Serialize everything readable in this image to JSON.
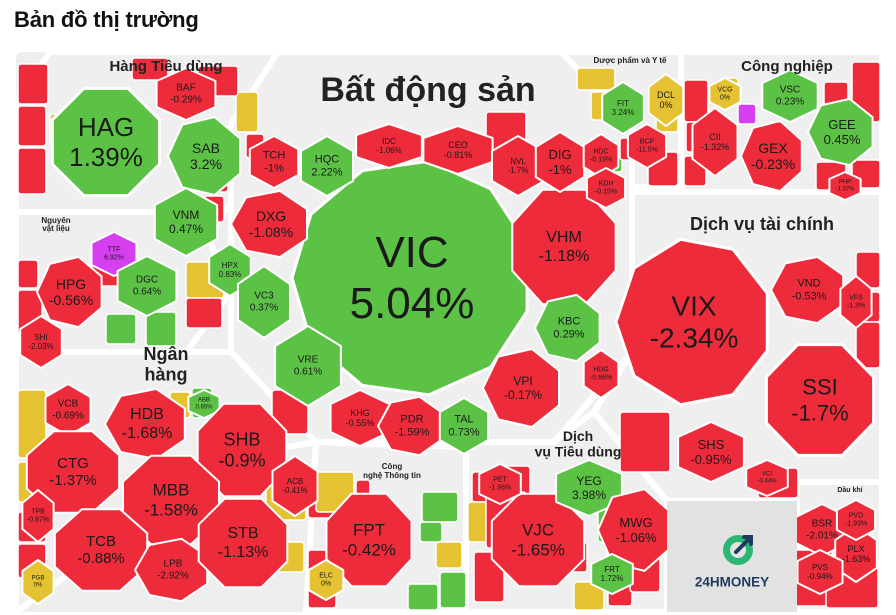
{
  "title": "Bản đồ thị trường",
  "brand": "24HMONEY",
  "colors": {
    "up": "#5cc245",
    "down": "#ee2b3b",
    "ref": "#e5c232",
    "ceiling": "#d53ff0",
    "floor": "#2ac3d3",
    "sector_bg": "#efefef",
    "text_dark": "#1a1a1a"
  },
  "chart_data": {
    "type": "heatmap",
    "title": "Bản đồ thị trường",
    "sectors": [
      {
        "name": "Bất động sản",
        "lines": [
          "Bất động sản"
        ]
      },
      {
        "name": "Hàng Tiêu dùng",
        "lines": [
          "Hàng Tiêu dùng"
        ]
      },
      {
        "name": "Dược phẩm và Y tế",
        "lines": [
          "Dược phẩm và Y tế"
        ]
      },
      {
        "name": "Công nghiệp",
        "lines": [
          "Công nghiệp"
        ]
      },
      {
        "name": "Dịch vụ tài chính",
        "lines": [
          "Dịch vụ tài chính"
        ]
      },
      {
        "name": "Nguyên vật liệu",
        "lines": [
          "Nguyên",
          "vật liệu"
        ]
      },
      {
        "name": "Ngân hàng",
        "lines": [
          "Ngân",
          "hàng"
        ]
      },
      {
        "name": "Công nghệ Thông tin",
        "lines": [
          "Công",
          "nghệ Thông tin"
        ]
      },
      {
        "name": "Dịch vụ Tiêu dùng",
        "lines": [
          "Dịch",
          "vụ Tiêu dùng"
        ]
      },
      {
        "name": "Dầu khí",
        "lines": [
          "Dầu khí"
        ]
      }
    ],
    "tiles": [
      {
        "sector": "Bất động sản",
        "ticker": "VIC",
        "change": "5.04%",
        "value": 5.04,
        "state": "up"
      },
      {
        "sector": "Bất động sản",
        "ticker": "VHM",
        "change": "-1.18%",
        "value": -1.18,
        "state": "down"
      },
      {
        "sector": "Bất động sản",
        "ticker": "TCH",
        "change": "-1%",
        "value": -1,
        "state": "down"
      },
      {
        "sector": "Bất động sản",
        "ticker": "HQC",
        "change": "2.22%",
        "value": 2.22,
        "state": "up"
      },
      {
        "sector": "Bất động sản",
        "ticker": "IDC",
        "change": "-1.06%",
        "value": -1.06,
        "state": "down"
      },
      {
        "sector": "Bất động sản",
        "ticker": "CEO",
        "change": "-0.81%",
        "value": -0.81,
        "state": "down"
      },
      {
        "sector": "Bất động sản",
        "ticker": "NVL",
        "change": "-1.7%",
        "value": -1.7,
        "state": "down"
      },
      {
        "sector": "Bất động sản",
        "ticker": "DIG",
        "change": "-1%",
        "value": -1,
        "state": "down"
      },
      {
        "sector": "Bất động sản",
        "ticker": "HDC",
        "change": "-0.19%",
        "value": -0.19,
        "state": "down"
      },
      {
        "sector": "Bất động sản",
        "ticker": "KDH",
        "change": "-0.15%",
        "value": -0.15,
        "state": "down"
      },
      {
        "sector": "Bất động sản",
        "ticker": "DXG",
        "change": "-1.08%",
        "value": -1.08,
        "state": "down"
      },
      {
        "sector": "Bất động sản",
        "ticker": "HPX",
        "change": "0.83%",
        "value": 0.83,
        "state": "up"
      },
      {
        "sector": "Bất động sản",
        "ticker": "VC3",
        "change": "0.37%",
        "value": 0.37,
        "state": "up"
      },
      {
        "sector": "Bất động sản",
        "ticker": "VRE",
        "change": "0.61%",
        "value": 0.61,
        "state": "up"
      },
      {
        "sector": "Bất động sản",
        "ticker": "KBC",
        "change": "0.29%",
        "value": 0.29,
        "state": "up"
      },
      {
        "sector": "Bất động sản",
        "ticker": "HDG",
        "change": "-0.66%",
        "value": -0.66,
        "state": "down"
      },
      {
        "sector": "Bất động sản",
        "ticker": "VPI",
        "change": "-0.17%",
        "value": -0.17,
        "state": "down"
      },
      {
        "sector": "Bất động sản",
        "ticker": "KHG",
        "change": "-0.55%",
        "value": -0.55,
        "state": "down"
      },
      {
        "sector": "Bất động sản",
        "ticker": "PDR",
        "change": "-1.59%",
        "value": -1.59,
        "state": "down"
      },
      {
        "sector": "Bất động sản",
        "ticker": "TAL",
        "change": "0.73%",
        "value": 0.73,
        "state": "up"
      },
      {
        "sector": "Hàng Tiêu dùng",
        "ticker": "HAG",
        "change": "1.39%",
        "value": 1.39,
        "state": "up"
      },
      {
        "sector": "Hàng Tiêu dùng",
        "ticker": "BAF",
        "change": "-0.29%",
        "value": -0.29,
        "state": "down"
      },
      {
        "sector": "Hàng Tiêu dùng",
        "ticker": "SAB",
        "change": "3.2%",
        "value": 3.2,
        "state": "up"
      },
      {
        "sector": "Hàng Tiêu dùng",
        "ticker": "VNM",
        "change": "0.47%",
        "value": 0.47,
        "state": "up"
      },
      {
        "sector": "Dược phẩm và Y tế",
        "ticker": "FIT",
        "change": "3.24%",
        "value": 3.24,
        "state": "up"
      },
      {
        "sector": "Dược phẩm và Y tế",
        "ticker": "DCL",
        "change": "0%",
        "value": 0,
        "state": "ref"
      },
      {
        "sector": "Dược phẩm và Y tế",
        "ticker": "BCP",
        "change": "-11.5%",
        "value": -11.5,
        "state": "down"
      },
      {
        "sector": "Công nghiệp",
        "ticker": "VCG",
        "change": "0%",
        "value": 0,
        "state": "ref"
      },
      {
        "sector": "Công nghiệp",
        "ticker": "VSC",
        "change": "0.23%",
        "value": 0.23,
        "state": "up"
      },
      {
        "sector": "Công nghiệp",
        "ticker": "CII",
        "change": "-1.32%",
        "value": -1.32,
        "state": "down"
      },
      {
        "sector": "Công nghiệp",
        "ticker": "GEX",
        "change": "-0.23%",
        "value": -0.23,
        "state": "down"
      },
      {
        "sector": "Công nghiệp",
        "ticker": "GEE",
        "change": "0.45%",
        "value": 0.45,
        "state": "up"
      },
      {
        "sector": "Công nghiệp",
        "ticker": "PHP",
        "change": "-1.37%",
        "value": -1.37,
        "state": "down"
      },
      {
        "sector": "Dịch vụ tài chính",
        "ticker": "VIX",
        "change": "-2.34%",
        "value": -2.34,
        "state": "down"
      },
      {
        "sector": "Dịch vụ tài chính",
        "ticker": "VND",
        "change": "-0.53%",
        "value": -0.53,
        "state": "down"
      },
      {
        "sector": "Dịch vụ tài chính",
        "ticker": "VFS",
        "change": "-1.3%",
        "value": -1.3,
        "state": "down"
      },
      {
        "sector": "Dịch vụ tài chính",
        "ticker": "SSI",
        "change": "-1.7%",
        "value": -1.7,
        "state": "down"
      },
      {
        "sector": "Dịch vụ tài chính",
        "ticker": "SHS",
        "change": "-0.95%",
        "value": -0.95,
        "state": "down"
      },
      {
        "sector": "Dịch vụ tài chính",
        "ticker": "VCI",
        "change": "-0.44%",
        "value": -0.44,
        "state": "down"
      },
      {
        "sector": "Nguyên vật liệu",
        "ticker": "HPG",
        "change": "-0.56%",
        "value": -0.56,
        "state": "down"
      },
      {
        "sector": "Nguyên vật liệu",
        "ticker": "TTF",
        "change": "6.92%",
        "value": 6.92,
        "state": "ceiling"
      },
      {
        "sector": "Nguyên vật liệu",
        "ticker": "DGC",
        "change": "0.64%",
        "value": 0.64,
        "state": "up"
      },
      {
        "sector": "Nguyên vật liệu",
        "ticker": "SHI",
        "change": "-2.03%",
        "value": -2.03,
        "state": "down"
      },
      {
        "sector": "Ngân hàng",
        "ticker": "VCB",
        "change": "-0.69%",
        "value": -0.69,
        "state": "down"
      },
      {
        "sector": "Ngân hàng",
        "ticker": "HDB",
        "change": "-1.68%",
        "value": -1.68,
        "state": "down"
      },
      {
        "sector": "Ngân hàng",
        "ticker": "ABB",
        "change": "0.85%",
        "value": 0.85,
        "state": "up"
      },
      {
        "sector": "Ngân hàng",
        "ticker": "CTG",
        "change": "-1.37%",
        "value": -1.37,
        "state": "down"
      },
      {
        "sector": "Ngân hàng",
        "ticker": "SHB",
        "change": "-0.9%",
        "value": -0.9,
        "state": "down"
      },
      {
        "sector": "Ngân hàng",
        "ticker": "MBB",
        "change": "-1.58%",
        "value": -1.58,
        "state": "down"
      },
      {
        "sector": "Ngân hàng",
        "ticker": "ACB",
        "change": "-0.41%",
        "value": -0.41,
        "state": "down"
      },
      {
        "sector": "Ngân hàng",
        "ticker": "TPB",
        "change": "-0.87%",
        "value": -0.87,
        "state": "down"
      },
      {
        "sector": "Ngân hàng",
        "ticker": "TCB",
        "change": "-0.88%",
        "value": -0.88,
        "state": "down"
      },
      {
        "sector": "Ngân hàng",
        "ticker": "LPB",
        "change": "-2.92%",
        "value": -2.92,
        "state": "down"
      },
      {
        "sector": "Ngân hàng",
        "ticker": "STB",
        "change": "-1.13%",
        "value": -1.13,
        "state": "down"
      },
      {
        "sector": "Ngân hàng",
        "ticker": "PGB",
        "change": "0%",
        "value": 0,
        "state": "ref"
      },
      {
        "sector": "Công nghệ Thông tin",
        "ticker": "FPT",
        "change": "-0.42%",
        "value": -0.42,
        "state": "down"
      },
      {
        "sector": "Công nghệ Thông tin",
        "ticker": "ELC",
        "change": "0%",
        "value": 0,
        "state": "ref"
      },
      {
        "sector": "Dịch vụ Tiêu dùng",
        "ticker": "VJC",
        "change": "-1.65%",
        "value": -1.65,
        "state": "down"
      },
      {
        "sector": "Dịch vụ Tiêu dùng",
        "ticker": "YEG",
        "change": "3.98%",
        "value": 3.98,
        "state": "up"
      },
      {
        "sector": "Dịch vụ Tiêu dùng",
        "ticker": "MWG",
        "change": "-1.06%",
        "value": -1.06,
        "state": "down"
      },
      {
        "sector": "Dịch vụ Tiêu dùng",
        "ticker": "PET",
        "change": "-1.96%",
        "value": -1.96,
        "state": "down"
      },
      {
        "sector": "Dịch vụ Tiêu dùng",
        "ticker": "FRT",
        "change": "1.72%",
        "value": 1.72,
        "state": "up"
      },
      {
        "sector": "Dầu khí",
        "ticker": "BSR",
        "change": "-2.01%",
        "value": -2.01,
        "state": "down"
      },
      {
        "sector": "Dầu khí",
        "ticker": "PLX",
        "change": "-1.63%",
        "value": -1.63,
        "state": "down"
      },
      {
        "sector": "Dầu khí",
        "ticker": "PVD",
        "change": "-1.93%",
        "value": -1.93,
        "state": "down"
      },
      {
        "sector": "Dầu khí",
        "ticker": "PVS",
        "change": "-0.94%",
        "value": -0.94,
        "state": "down"
      }
    ]
  }
}
